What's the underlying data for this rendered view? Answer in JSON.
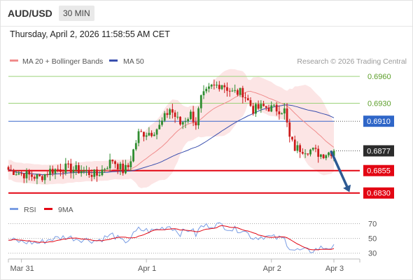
{
  "header": {
    "symbol": "AUD/USD",
    "timeframe": "30 MIN",
    "datetime": "Thursday, April 2, 2026 11:58:55 AM CET"
  },
  "colors": {
    "bull": "#2f8c2f",
    "bear": "#cc1b1b",
    "bollinger_band_fill": "#fbdcdc",
    "ma20": "#f08c8c",
    "ma50": "#3a4fae",
    "support_line": "#e30613",
    "resistance_line": "#9cd27a",
    "pivot_line": "#3b68cc",
    "resistance_label": "#5c9e2a",
    "pivot_badge": "#2f66c8",
    "last_badge": "#2b2b2b",
    "support_badge": "#e30613",
    "forecast_arrow": "#2d5a93",
    "rsi_line": "#7a9de3",
    "rsi_ma": "#e30613"
  },
  "chart_data": [
    {
      "type": "candlestick",
      "legend": [
        {
          "name": "MA 20 + Bollinger Bands",
          "color": "#f08c8c"
        },
        {
          "name": "MA 50",
          "color": "#3a4fae"
        }
      ],
      "watermark": "Research © 2026 Trading Central",
      "x_ticks": [
        {
          "label": "Mar 31",
          "index": 5
        },
        {
          "label": "Apr 1",
          "index": 53
        },
        {
          "label": "Apr 2",
          "index": 101
        },
        {
          "label": "Apr 3",
          "index": 125
        }
      ],
      "ylim": [
        0.6822,
        0.6971
      ],
      "levels": [
        {
          "value": 0.696,
          "label": "0.6960",
          "kind": "resistance"
        },
        {
          "value": 0.693,
          "label": "0.6930",
          "kind": "resistance"
        },
        {
          "value": 0.691,
          "label": "0.6910",
          "kind": "pivot"
        },
        {
          "value": 0.6877,
          "label": "0.6877",
          "kind": "last"
        },
        {
          "value": 0.6855,
          "label": "0.6855",
          "kind": "support"
        },
        {
          "value": 0.683,
          "label": "0.6830",
          "kind": "support"
        }
      ],
      "forecast_arrow": {
        "from_index": 124,
        "from_value": 0.6876,
        "to_index": 131,
        "to_value": 0.6831
      },
      "close_path": [
        [
          0,
          0.6856
        ],
        [
          6,
          0.6851
        ],
        [
          12,
          0.6847
        ],
        [
          16,
          0.6855
        ],
        [
          22,
          0.6858
        ],
        [
          28,
          0.6855
        ],
        [
          34,
          0.685
        ],
        [
          40,
          0.6867
        ],
        [
          44,
          0.6855
        ],
        [
          46,
          0.6859
        ],
        [
          50,
          0.6896
        ],
        [
          55,
          0.6898
        ],
        [
          58,
          0.6904
        ],
        [
          62,
          0.6924
        ],
        [
          66,
          0.6907
        ],
        [
          70,
          0.6918
        ],
        [
          72,
          0.6908
        ],
        [
          74,
          0.6935
        ],
        [
          78,
          0.6948
        ],
        [
          82,
          0.6952
        ],
        [
          86,
          0.6942
        ],
        [
          90,
          0.6942
        ],
        [
          94,
          0.6923
        ],
        [
          98,
          0.6926
        ],
        [
          106,
          0.6922
        ],
        [
          108,
          0.6891
        ],
        [
          110,
          0.688
        ],
        [
          116,
          0.6878
        ],
        [
          120,
          0.6873
        ],
        [
          124,
          0.6876
        ]
      ]
    },
    {
      "type": "line",
      "legend": [
        {
          "name": "RSI",
          "color": "#7a9de3"
        },
        {
          "name": "9MA",
          "color": "#e30613"
        }
      ],
      "ylim": [
        25,
        78
      ],
      "y_ticks": [
        70,
        50,
        30
      ],
      "rsi_path": [
        [
          0,
          48
        ],
        [
          6,
          45
        ],
        [
          12,
          44
        ],
        [
          16,
          49
        ],
        [
          22,
          52
        ],
        [
          28,
          49
        ],
        [
          34,
          47
        ],
        [
          40,
          55
        ],
        [
          44,
          45
        ],
        [
          46,
          48
        ],
        [
          50,
          62
        ],
        [
          55,
          60
        ],
        [
          58,
          63
        ],
        [
          62,
          67
        ],
        [
          66,
          57
        ],
        [
          70,
          63
        ],
        [
          72,
          55
        ],
        [
          74,
          66
        ],
        [
          78,
          68
        ],
        [
          82,
          68
        ],
        [
          86,
          62
        ],
        [
          90,
          62
        ],
        [
          94,
          51
        ],
        [
          98,
          53
        ],
        [
          106,
          49
        ],
        [
          108,
          38
        ],
        [
          110,
          34
        ],
        [
          116,
          33
        ],
        [
          120,
          37
        ],
        [
          124,
          38
        ]
      ]
    }
  ]
}
